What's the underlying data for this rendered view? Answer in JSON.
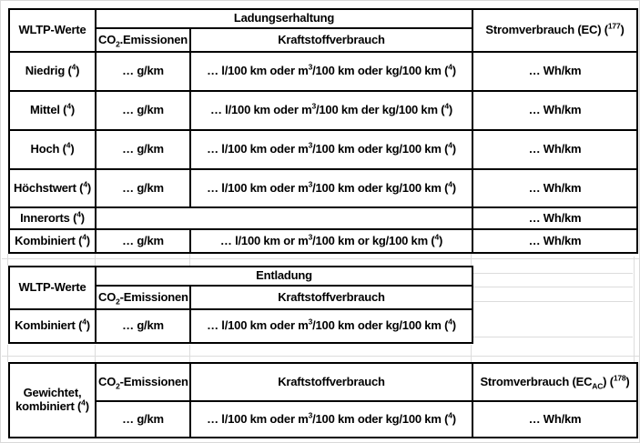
{
  "colors": {
    "background": "#ffffff",
    "table_border": "#000000",
    "text": "#000000",
    "grid_line": "#dcdcdc"
  },
  "t1": {
    "wltp": "WLTP-Werte",
    "group": "Ladungserhaltung",
    "co2": [
      [
        "t",
        "CO"
      ],
      [
        "sub",
        "2"
      ],
      [
        "t",
        ".Emissionen"
      ]
    ],
    "fuel": "Kraftstoffverbrauch",
    "ec": [
      [
        "t",
        "Stromverbrauch (EC) ("
      ],
      [
        "sup",
        "177"
      ],
      [
        "t",
        ")"
      ]
    ],
    "rows": [
      {
        "label": [
          [
            "t",
            "Niedrig ("
          ],
          [
            "sup",
            "4"
          ],
          [
            "t",
            ")"
          ]
        ],
        "co2": "… g/km",
        "fuel": [
          [
            "t",
            "… l/100 km oder m"
          ],
          [
            "sup",
            "3"
          ],
          [
            "t",
            "/100 km oder kg/100 km ("
          ],
          [
            "sup",
            "4"
          ],
          [
            "t",
            ")"
          ]
        ],
        "ec": "… Wh/km"
      },
      {
        "label": [
          [
            "t",
            "Mittel ("
          ],
          [
            "sup",
            "4"
          ],
          [
            "t",
            ")"
          ]
        ],
        "co2": "… g/km",
        "fuel": [
          [
            "t",
            "… l/100 km oder m"
          ],
          [
            "sup",
            "3"
          ],
          [
            "t",
            "/100 km der kg/100 km ("
          ],
          [
            "sup",
            "4"
          ],
          [
            "t",
            ")"
          ]
        ],
        "ec": "… Wh/km"
      },
      {
        "label": [
          [
            "t",
            "Hoch ("
          ],
          [
            "sup",
            "4"
          ],
          [
            "t",
            ")"
          ]
        ],
        "co2": "… g/km",
        "fuel": [
          [
            "t",
            "… l/100 km oder m"
          ],
          [
            "sup",
            "3"
          ],
          [
            "t",
            "/100 km oder kg/100 km ("
          ],
          [
            "sup",
            "4"
          ],
          [
            "t",
            ")"
          ]
        ],
        "ec": "… Wh/km"
      },
      {
        "label": [
          [
            "t",
            "Höchstwert ("
          ],
          [
            "sup",
            "4"
          ],
          [
            "t",
            ")"
          ]
        ],
        "co2": "… g/km",
        "fuel": [
          [
            "t",
            "… l/100 km oder m"
          ],
          [
            "sup",
            "3"
          ],
          [
            "t",
            "/100 km oder kg/100 km ("
          ],
          [
            "sup",
            "4"
          ],
          [
            "t",
            ")"
          ]
        ],
        "ec": "… Wh/km"
      },
      {
        "label": [
          [
            "t",
            "Innerorts ("
          ],
          [
            "sup",
            "4"
          ],
          [
            "t",
            ")"
          ]
        ],
        "empty": "",
        "ec": "… Wh/km"
      },
      {
        "label": [
          [
            "t",
            "Kombiniert ("
          ],
          [
            "sup",
            "4"
          ],
          [
            "t",
            ")"
          ]
        ],
        "co2": "… g/km",
        "fuel": [
          [
            "t",
            "… l/100 km or m"
          ],
          [
            "sup",
            "3"
          ],
          [
            "t",
            "/100 km or kg/100 km ("
          ],
          [
            "sup",
            "4"
          ],
          [
            "t",
            ")"
          ]
        ],
        "ec": "… Wh/km"
      }
    ]
  },
  "t2": {
    "wltp": "WLTP-Werte",
    "group": "Entladung",
    "co2": [
      [
        "t",
        "CO"
      ],
      [
        "sub",
        "2"
      ],
      [
        "t",
        "-Emissionen"
      ]
    ],
    "fuel": "Kraftstoffverbrauch",
    "row": {
      "label": [
        [
          "t",
          "Kombiniert ("
        ],
        [
          "sup",
          "4"
        ],
        [
          "t",
          ")"
        ]
      ],
      "co2": "… g/km",
      "fuel": [
        [
          "t",
          "… l/100 km oder m"
        ],
        [
          "sup",
          "3"
        ],
        [
          "t",
          "/100 km oder kg/100 km ("
        ],
        [
          "sup",
          "4"
        ],
        [
          "t",
          ")"
        ]
      ]
    }
  },
  "t3": {
    "label_line1": "Gewichtet,",
    "label_line2": [
      [
        "t",
        "kombiniert ("
      ],
      [
        "sup",
        "4"
      ],
      [
        "t",
        ")"
      ]
    ],
    "co2": [
      [
        "t",
        "CO"
      ],
      [
        "sub",
        "2"
      ],
      [
        "t",
        "-Emissionen"
      ]
    ],
    "fuel": "Kraftstoffverbrauch",
    "ec": [
      [
        "t",
        "Stromverbrauch (EC"
      ],
      [
        "sub",
        "AC"
      ],
      [
        "t",
        ") ("
      ],
      [
        "sup",
        "178"
      ],
      [
        "t",
        ")"
      ]
    ],
    "row": {
      "co2": "… g/km",
      "fuel": [
        [
          "t",
          "… l/100 km oder m"
        ],
        [
          "sup",
          "3"
        ],
        [
          "t",
          "/100 km oder kg/100 km ("
        ],
        [
          "sup",
          "4"
        ],
        [
          "t",
          ")"
        ]
      ],
      "ec": "… Wh/km"
    }
  }
}
